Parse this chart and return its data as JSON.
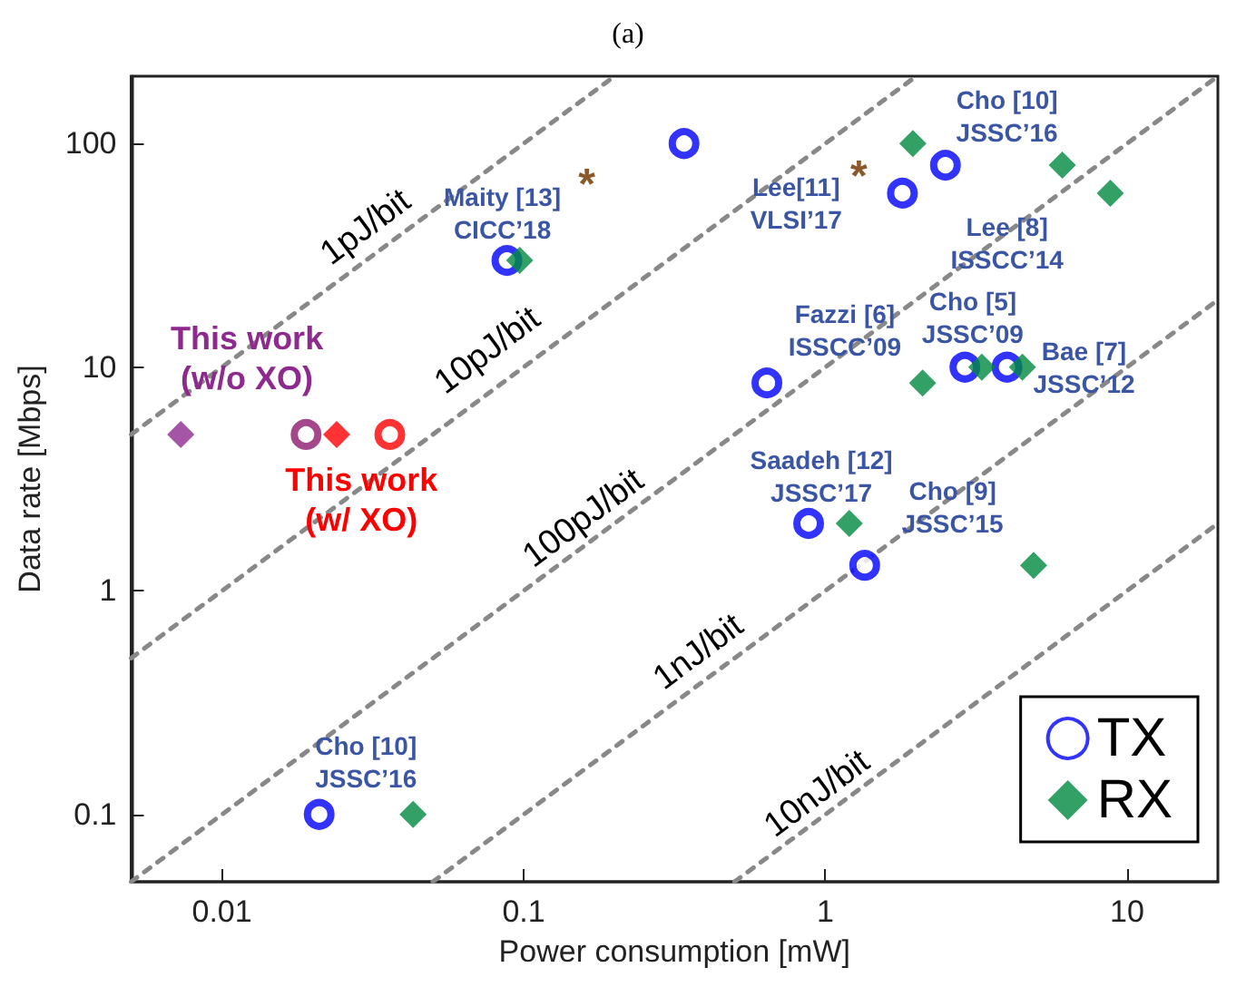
{
  "chart_data": {
    "type": "scatter",
    "title": "(a)",
    "xlabel": "Power consumption [mW]",
    "ylabel": "Data rate [Mbps]",
    "log": "xy",
    "grid": false,
    "legend": "bottom right",
    "xlim": [
      0.005,
      20
    ],
    "xticks": [
      0.01,
      0.1,
      1,
      10
    ],
    "ylim": [
      0.05,
      200
    ],
    "yticks": [
      0.1,
      1,
      10,
      100
    ],
    "series": [
      {
        "type": "line",
        "color": "#888888",
        "line_style": "dashed",
        "marker": "none",
        "x": [
          0.005,
          0.2
        ],
        "values": [
          5,
          200
        ]
      },
      {
        "type": "line",
        "color": "#888888",
        "line_style": "dashed",
        "marker": "none",
        "x": [
          0.005,
          2
        ],
        "values": [
          0.5,
          200
        ]
      },
      {
        "type": "line",
        "color": "#888888",
        "line_style": "dashed",
        "marker": "none",
        "x": [
          0.005,
          20
        ],
        "values": [
          0.05,
          200
        ]
      },
      {
        "type": "line",
        "color": "#888888",
        "line_style": "dashed",
        "marker": "none",
        "x": [
          0.05,
          20
        ],
        "values": [
          0.05,
          20
        ]
      },
      {
        "type": "line",
        "color": "#888888",
        "line_style": "dashed",
        "marker": "none",
        "x": [
          0.5,
          20
        ],
        "values": [
          0.05,
          2
        ]
      },
      {
        "name": "TX",
        "marker": "circle",
        "color": "#0000ff",
        "x": [
          0.019,
          0.036,
          0.088,
          0.34,
          2.5,
          1.8,
          0.64,
          2.9,
          4.0,
          0.88,
          1.35,
          0.021
        ],
        "values": [
          5,
          5,
          30,
          100,
          80,
          60,
          8.5,
          10,
          10,
          2,
          1.3,
          0.1
        ],
        "colors": [
          "#8e1a6e",
          "#ff0000",
          "#0000ff",
          "#0000ff",
          "#0000ff",
          "#0000ff",
          "#0000ff",
          "#0000ff",
          "#0000ff",
          "#0000ff",
          "#0000ff",
          "#0000ff"
        ]
      },
      {
        "name": "RX",
        "marker": "diamond",
        "color": "#008a3e",
        "x": [
          0.0073,
          0.024,
          0.097,
          1.95,
          6.1,
          8.8,
          2.1,
          3.3,
          4.5,
          1.2,
          4.9,
          0.043
        ],
        "values": [
          5,
          5,
          30,
          100,
          80,
          60,
          8.5,
          10,
          10,
          2,
          1.3,
          0.1
        ],
        "colors": [
          "#8e2a8e",
          "#ff0000",
          "#008a3e",
          "#008a3e",
          "#008a3e",
          "#008a3e",
          "#008a3e",
          "#008a3e",
          "#008a3e",
          "#008a3e",
          "#008a3e",
          "#008a3e"
        ]
      }
    ],
    "annotations": [
      "1pJ/bit",
      "10pJ/bit",
      "100pJ/bit",
      "1nJ/bit",
      "10nJ/bit",
      "This work\n(w/o XO)",
      "This work\n(w/ XO)",
      "Maity [13]\nCICC’18",
      "*",
      "Lee[11]\nVLSI’17",
      "*",
      "Cho [10]\nJSSC’16",
      "Lee [8]\nISSCC’14",
      "Fazzi [6]\nISSCC’09",
      "Cho [5]\nJSSC’09",
      "Bae [7]\nJSSC’12",
      "Saadeh [12]\nJSSC’17",
      "Cho [9]\nJSSC’15",
      "Cho [10]\nJSSC’16"
    ]
  }
}
